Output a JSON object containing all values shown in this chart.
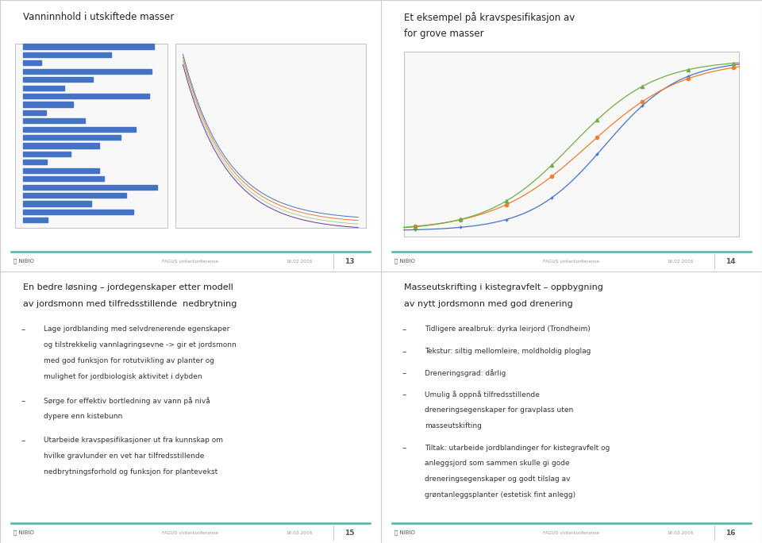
{
  "bg_color": "#ffffff",
  "border_color": "#cccccc",
  "panel_bg": "#ffffff",
  "title_color": "#222222",
  "text_color": "#333333",
  "footer_line_color": "#4db3a4",
  "footer_text_color": "#999999",
  "nibio_text_color": "#555555",
  "slide13": {
    "title": "Vanninnhold i utskiftede masser",
    "page": "13"
  },
  "slide14": {
    "title_line1": "Et eksempel på kravspesifikasjon av",
    "title_line2": "for grove masser",
    "page": "14"
  },
  "slide15": {
    "title_line1": "En bedre løsning – jordegenskaper etter modell",
    "title_line2": "av jordsmonn med tilfredsstillende  nedbrytning",
    "page": "15",
    "bullets": [
      [
        "Lage jordblanding med selvdrenerende egenskaper",
        "og tilstrekkelig vannlagringsevne -> gir et jordsmonn",
        "med god funksjon for rotutvikling av planter og",
        "mulighet for jordbiologisk aktivitet i dybden"
      ],
      [
        "Sørge for effektiv bortledning av vann på nivå",
        "dypere enn kistebunn"
      ],
      [
        "Utarbeide kravspesifikasjoner ut fra kunnskap om",
        "hvilke gravlunder en vet har tilfredsstillende",
        "nedbrytningsforhold og funksjon for plantevekst"
      ]
    ]
  },
  "slide16": {
    "title_line1": "Masseutskrifting i kistegravfelt – oppbygning",
    "title_line2": "av nytt jordsmonn med god drenering",
    "page": "16",
    "bullets": [
      [
        "Tidligere arealbruk: dyrka leirjord (Trondheim)"
      ],
      [
        "Tekstur: siltig mellomleire, moldholdig ploglag"
      ],
      [
        "Dreneringsgrad: dårlig"
      ],
      [
        "Umulig å oppnå tilfredsstillende",
        "dreneringsegenskaper for gravplass uten",
        "masseutskifting"
      ],
      [
        "Tiltak: utarbeide jordblandinger for kistegravfelt og",
        "anleggsjord som sammen skulle gi gode",
        "dreneringsegenskaper og godt tilslag av",
        "grøntanleggsplanter (estetisk fint anlegg)"
      ]
    ]
  },
  "footer_center": "FAGUS vinterkonferanse",
  "footer_date": "16.02.2016"
}
